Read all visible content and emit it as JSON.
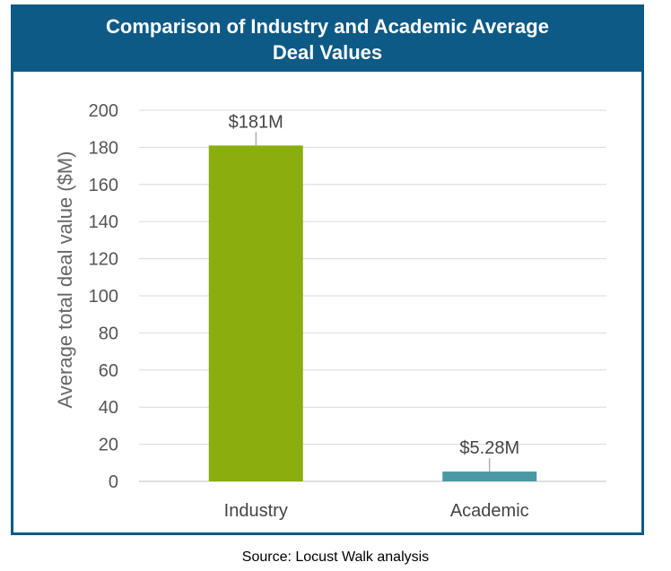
{
  "chart_data": {
    "type": "bar",
    "title": "Comparison of Industry and Academic Average Deal Values",
    "ylabel": "Average total deal value ($M)",
    "xlabel": "",
    "categories": [
      "Industry",
      "Academic"
    ],
    "values": [
      181,
      5.28
    ],
    "data_labels": [
      "$181M",
      "$5.28M"
    ],
    "ylim": [
      0,
      200
    ],
    "yticks": [
      0,
      20,
      40,
      60,
      80,
      100,
      120,
      140,
      160,
      180,
      200
    ],
    "grid": true,
    "legend": "none",
    "colors": [
      "#8aae0e",
      "#4a98a6"
    ]
  },
  "source": "Source: Locust Walk analysis",
  "colors": {
    "title_bar": "#0e5a86",
    "title_text": "#ffffff",
    "grid": "#d9d9d9"
  }
}
